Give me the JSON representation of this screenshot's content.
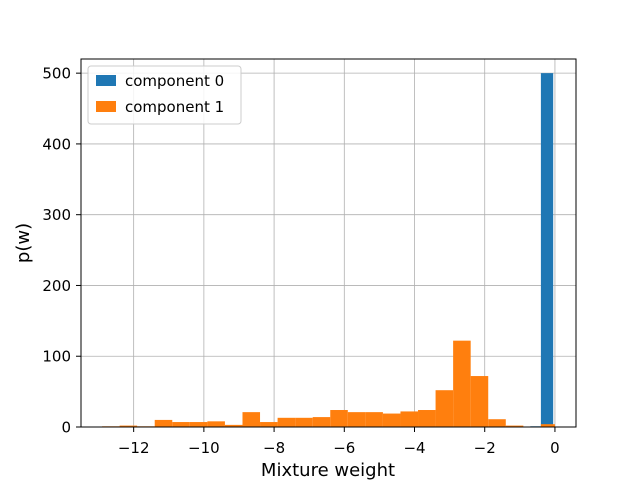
{
  "chart_data": {
    "type": "bar",
    "xlabel": "Mixture weight",
    "ylabel": "p(w)",
    "xlim": [
      -13.5,
      0.6
    ],
    "ylim": [
      0,
      520
    ],
    "grid": true,
    "legend_position": "top-left",
    "xticks": [
      {
        "value": -12,
        "label": "−12"
      },
      {
        "value": -10,
        "label": "−10"
      },
      {
        "value": -8,
        "label": "−8"
      },
      {
        "value": -6,
        "label": "−6"
      },
      {
        "value": -4,
        "label": "−4"
      },
      {
        "value": -2,
        "label": "−2"
      },
      {
        "value": 0,
        "label": "0"
      }
    ],
    "yticks": [
      {
        "value": 0,
        "label": "0"
      },
      {
        "value": 100,
        "label": "100"
      },
      {
        "value": 200,
        "label": "200"
      },
      {
        "value": 300,
        "label": "300"
      },
      {
        "value": 400,
        "label": "400"
      },
      {
        "value": 500,
        "label": "500"
      }
    ],
    "series": [
      {
        "name": "component 0",
        "color": "#1f77b4",
        "bins": [
          {
            "x0": -0.7,
            "x1": -0.4,
            "count": 1
          },
          {
            "x0": -0.4,
            "x1": -0.05,
            "count": 500
          }
        ]
      },
      {
        "name": "component 1",
        "color": "#ff7f0e",
        "bins": [
          {
            "x0": -12.9,
            "x1": -12.4,
            "count": 1
          },
          {
            "x0": -12.4,
            "x1": -11.9,
            "count": 2
          },
          {
            "x0": -11.9,
            "x1": -11.4,
            "count": 1
          },
          {
            "x0": -11.4,
            "x1": -10.9,
            "count": 10
          },
          {
            "x0": -10.9,
            "x1": -10.4,
            "count": 7
          },
          {
            "x0": -10.4,
            "x1": -9.9,
            "count": 7
          },
          {
            "x0": -9.9,
            "x1": -9.4,
            "count": 8
          },
          {
            "x0": -9.4,
            "x1": -8.9,
            "count": 3
          },
          {
            "x0": -8.9,
            "x1": -8.4,
            "count": 21
          },
          {
            "x0": -8.4,
            "x1": -7.9,
            "count": 7
          },
          {
            "x0": -7.9,
            "x1": -7.4,
            "count": 13
          },
          {
            "x0": -7.4,
            "x1": -6.9,
            "count": 13
          },
          {
            "x0": -6.9,
            "x1": -6.4,
            "count": 14
          },
          {
            "x0": -6.4,
            "x1": -5.9,
            "count": 24
          },
          {
            "x0": -5.9,
            "x1": -5.4,
            "count": 21
          },
          {
            "x0": -5.4,
            "x1": -4.9,
            "count": 21
          },
          {
            "x0": -4.9,
            "x1": -4.4,
            "count": 19
          },
          {
            "x0": -4.4,
            "x1": -3.9,
            "count": 22
          },
          {
            "x0": -3.9,
            "x1": -3.4,
            "count": 24
          },
          {
            "x0": -3.4,
            "x1": -2.9,
            "count": 52
          },
          {
            "x0": -2.9,
            "x1": -2.4,
            "count": 122
          },
          {
            "x0": -2.4,
            "x1": -1.9,
            "count": 72
          },
          {
            "x0": -1.9,
            "x1": -1.4,
            "count": 11
          },
          {
            "x0": -1.4,
            "x1": -0.9,
            "count": 2
          },
          {
            "x0": -0.4,
            "x1": 0.0,
            "count": 4
          }
        ]
      }
    ]
  }
}
